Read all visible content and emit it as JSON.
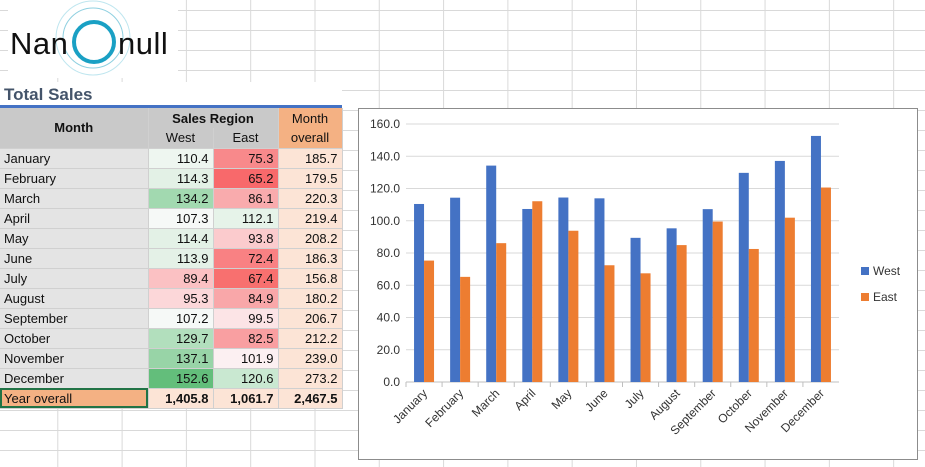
{
  "logo": {
    "text": "Nanonull",
    "part1": "Nan",
    "part2": "null"
  },
  "title": "Total Sales",
  "table": {
    "header_month": "Month",
    "header_region": "Sales Region",
    "header_west": "West",
    "header_east": "East",
    "header_overall_1": "Month",
    "header_overall_2": "overall",
    "rows": [
      {
        "month": "January",
        "west": "110.4",
        "east": "75.3",
        "overall": "185.7",
        "west_color": "#eef6f0",
        "east_color": "#f8898b"
      },
      {
        "month": "February",
        "west": "114.3",
        "east": "65.2",
        "overall": "179.5",
        "west_color": "#e3f1e6",
        "east_color": "#f8696b"
      },
      {
        "month": "March",
        "west": "134.2",
        "east": "86.1",
        "overall": "220.3",
        "west_color": "#a2d9b0",
        "east_color": "#f9abad"
      },
      {
        "month": "April",
        "west": "107.3",
        "east": "112.1",
        "overall": "219.4",
        "west_color": "#f6f9f7",
        "east_color": "#e6f3e9"
      },
      {
        "month": "May",
        "west": "114.4",
        "east": "93.8",
        "overall": "208.2",
        "west_color": "#e3f1e6",
        "east_color": "#fbcbcd"
      },
      {
        "month": "June",
        "west": "113.9",
        "east": "72.4",
        "overall": "186.3",
        "west_color": "#e4f1e7",
        "east_color": "#f98183"
      },
      {
        "month": "July",
        "west": "89.4",
        "east": "67.4",
        "overall": "156.8",
        "west_color": "#fbc1c3",
        "east_color": "#f8706f"
      },
      {
        "month": "August",
        "west": "95.3",
        "east": "84.9",
        "overall": "180.2",
        "west_color": "#fcd7d9",
        "east_color": "#f9a7a9"
      },
      {
        "month": "September",
        "west": "107.2",
        "east": "99.5",
        "overall": "206.7",
        "west_color": "#f6f9f7",
        "east_color": "#fce4e6"
      },
      {
        "month": "October",
        "west": "129.7",
        "east": "82.5",
        "overall": "212.2",
        "west_color": "#b2dfbd",
        "east_color": "#f99fa1"
      },
      {
        "month": "November",
        "west": "137.1",
        "east": "101.9",
        "overall": "239.0",
        "west_color": "#98d4a7",
        "east_color": "#fcf0f2"
      },
      {
        "month": "December",
        "west": "152.6",
        "east": "120.6",
        "overall": "273.2",
        "west_color": "#63be7b",
        "east_color": "#c9e8d1"
      }
    ],
    "total": {
      "label": "Year overall",
      "west": "1,405.8",
      "east": "1,061.7",
      "overall": "2,467.5"
    }
  },
  "chart_data": {
    "type": "bar",
    "categories": [
      "January",
      "February",
      "March",
      "April",
      "May",
      "June",
      "July",
      "August",
      "September",
      "October",
      "November",
      "December"
    ],
    "series": [
      {
        "name": "West",
        "color": "#4472c4",
        "values": [
          110.4,
          114.3,
          134.2,
          107.3,
          114.4,
          113.9,
          89.4,
          95.3,
          107.2,
          129.7,
          137.1,
          152.6
        ]
      },
      {
        "name": "East",
        "color": "#ed7d31",
        "values": [
          75.3,
          65.2,
          86.1,
          112.1,
          93.8,
          72.4,
          67.4,
          84.9,
          99.5,
          82.5,
          101.9,
          120.6
        ]
      }
    ],
    "ylim": [
      0,
      160
    ],
    "yticks": [
      "0.0",
      "20.0",
      "40.0",
      "60.0",
      "80.0",
      "100.0",
      "120.0",
      "140.0",
      "160.0"
    ],
    "grid": true,
    "legend": "right"
  }
}
